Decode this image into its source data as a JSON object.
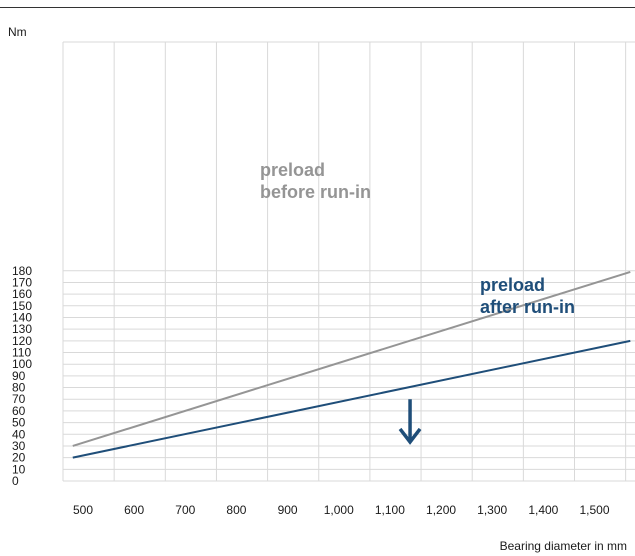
{
  "chart_data": {
    "type": "line",
    "xlabel": "Bearing diameter in mm",
    "ylabel": "Nm",
    "xlim": [
      470,
      1570
    ],
    "ylim": [
      0,
      190
    ],
    "x_ticks": [
      500,
      600,
      700,
      800,
      900,
      1000,
      1100,
      1200,
      1300,
      1400,
      1500
    ],
    "x_tick_labels": [
      "500",
      "600",
      "700",
      "800",
      "900",
      "1,000",
      "1,100",
      "1,200",
      "1,300",
      "1,400",
      "1,500"
    ],
    "y_ticks": [
      0,
      10,
      20,
      30,
      40,
      50,
      60,
      70,
      80,
      90,
      100,
      110,
      120,
      130,
      140,
      150,
      160,
      170,
      180
    ],
    "y_tick_labels": [
      "0",
      "10",
      "20",
      "30",
      "40",
      "50",
      "60",
      "70",
      "80",
      "90",
      "100",
      "110",
      "120",
      "130",
      "140",
      "150",
      "160",
      "170",
      "180"
    ],
    "grid": true,
    "series": [
      {
        "color": "#959595",
        "x": [
          480,
          1570
        ],
        "values": [
          30,
          179
        ]
      },
      {
        "color": "#1f4e79",
        "x": [
          480,
          1570
        ],
        "values": [
          20,
          120
        ]
      }
    ],
    "annotations": [
      {
        "lines": [
          "preload",
          "before run-in"
        ],
        "color": "#959595"
      },
      {
        "lines": [
          "preload",
          "after run-in"
        ],
        "color": "#1f4e79"
      }
    ],
    "arrow": {
      "direction": "down",
      "x": 1200,
      "from": 70,
      "to": 30,
      "color": "#1f4e79"
    }
  }
}
